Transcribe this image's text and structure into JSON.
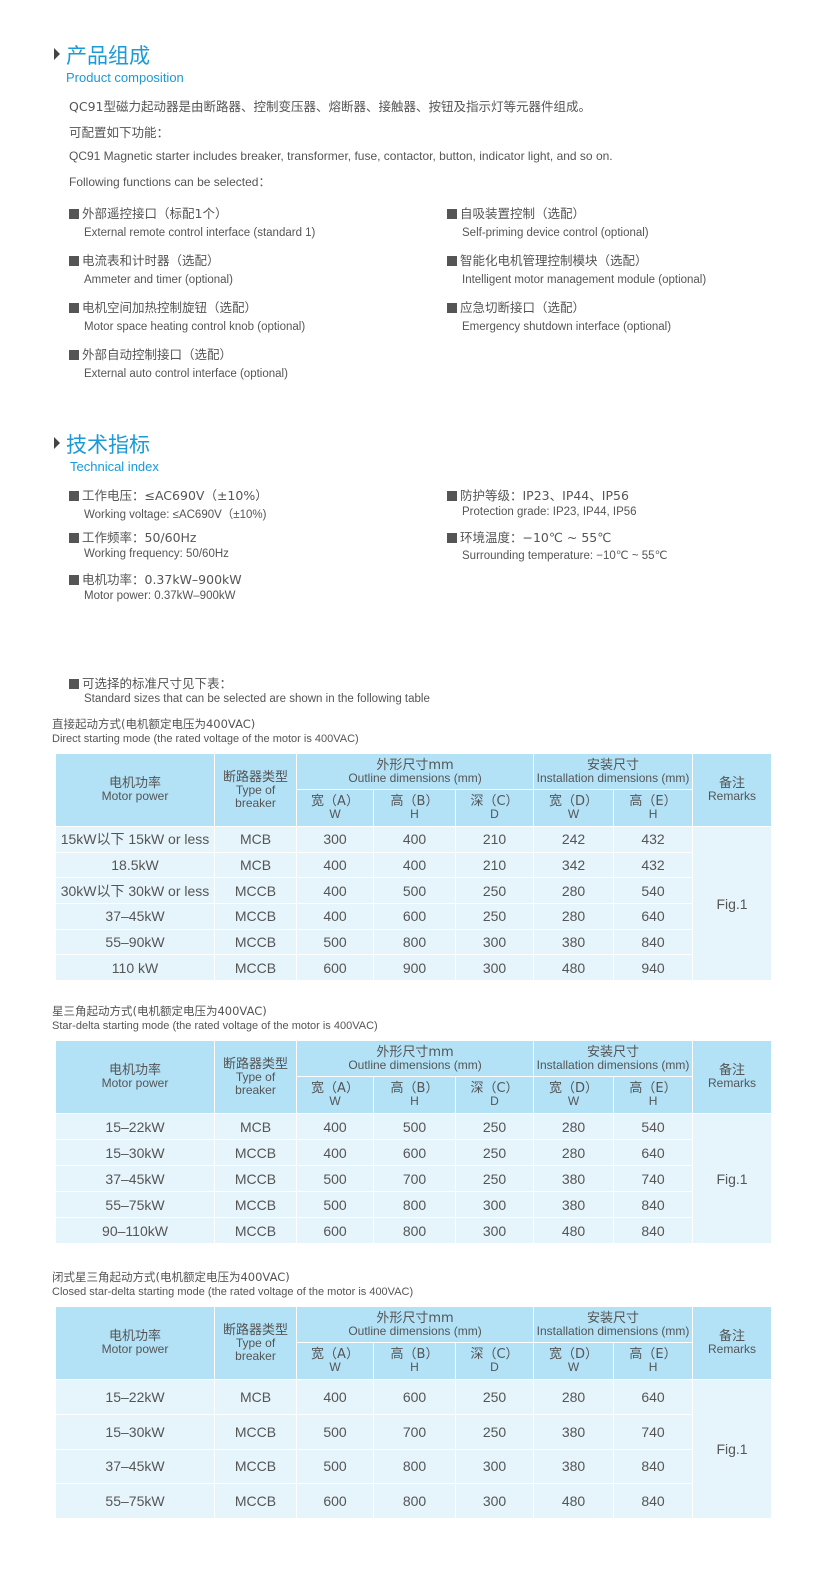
{
  "composition": {
    "title_zh": "产品组成",
    "title_en": "Product composition",
    "intro_zh": "QC91型磁力起动器是由断路器、控制变压器、熔断器、接触器、按钮及指示灯等元器件组成。",
    "configurable_zh": "可配置如下功能：",
    "intro_en": "QC91 Magnetic starter includes breaker, transformer, fuse, contactor, button, indicator light, and so on.",
    "configurable_en": "Following functions can be selected：",
    "features_left": [
      {
        "zh": "外部遥控接口（标配1个）",
        "en": "External remote control interface (standard 1)"
      },
      {
        "zh": "电流表和计时器（选配）",
        "en": "Ammeter and timer (optional)"
      },
      {
        "zh": "电机空间加热控制旋钮（选配）",
        "en": "Motor space heating control knob (optional)"
      },
      {
        "zh": "外部自动控制接口（选配）",
        "en": "External auto control interface (optional)"
      }
    ],
    "features_right": [
      {
        "zh": "自吸装置控制（选配）",
        "en": "Self-priming device control (optional)"
      },
      {
        "zh": "智能化电机管理控制模块（选配）",
        "en": "Intelligent motor management module (optional)"
      },
      {
        "zh": "应急切断接口（选配）",
        "en": "Emergency shutdown interface (optional)"
      }
    ]
  },
  "technical": {
    "title_zh": "技术指标",
    "title_en": "Technical index",
    "left": [
      {
        "zh": "工作电压：≤AC690V（±10%）",
        "en": "Working voltage: ≤AC690V（±10%)"
      },
      {
        "zh": "工作频率：50/60Hz",
        "en": "Working frequency: 50/60Hz"
      },
      {
        "zh": "电机功率：0.37kW–900kW",
        "en": "Motor power: 0.37kW–900kW"
      }
    ],
    "right": [
      {
        "zh": "防护等级：IP23、IP44、IP56",
        "en": "Protection grade: IP23, IP44, IP56"
      },
      {
        "zh": "环境温度：−10℃ ~ 55℃",
        "en": "Surrounding temperature: −10℃ ~ 55℃"
      }
    ],
    "sizes_zh": "可选择的标准尺寸见下表：",
    "sizes_en": "Standard sizes that can be selected are shown in the following table"
  },
  "table_header": {
    "motor_zh": "电机功率",
    "motor_en": "Motor power",
    "breaker_zh": "断路器类型",
    "breaker_en": "Type of breaker",
    "outline_zh": "外形尺寸mm",
    "outline_en": "Outline dimensions (mm)",
    "install_zh": "安装尺寸",
    "install_en": "Installation dimensions (mm)",
    "remarks_zh": "备注",
    "remarks_en": "Remarks",
    "w_zh": "宽（A）",
    "w_en": "W",
    "h_zh": "高（B）",
    "h_en": "H",
    "d_zh": "深（C）",
    "d_en": "D",
    "iw_zh": "宽（D）",
    "iw_en": "W",
    "ih_zh": "高（E）",
    "ih_en": "H"
  },
  "tables": [
    {
      "caption_zh": "直接起动方式(电机额定电压为400VAC)",
      "caption_en": "Direct starting mode (the rated voltage of the motor is 400VAC)",
      "remarks": "Fig.1",
      "rows": [
        [
          "15kW以下 15kW or less",
          "MCB",
          "300",
          "400",
          "210",
          "242",
          "432"
        ],
        [
          "18.5kW",
          "MCB",
          "400",
          "400",
          "210",
          "342",
          "432"
        ],
        [
          "30kW以下 30kW or less",
          "MCCB",
          "400",
          "500",
          "250",
          "280",
          "540"
        ],
        [
          "37–45kW",
          "MCCB",
          "400",
          "600",
          "250",
          "280",
          "640"
        ],
        [
          "55–90kW",
          "MCCB",
          "500",
          "800",
          "300",
          "380",
          "840"
        ],
        [
          "110 kW",
          "MCCB",
          "600",
          "900",
          "300",
          "480",
          "940"
        ]
      ]
    },
    {
      "caption_zh": "星三角起动方式(电机额定电压为400VAC)",
      "caption_en": "Star-delta starting mode (the rated voltage of the motor is 400VAC)",
      "remarks": "Fig.1",
      "rows": [
        [
          "15–22kW",
          "MCB",
          "400",
          "500",
          "250",
          "280",
          "540"
        ],
        [
          "15–30kW",
          "MCCB",
          "400",
          "600",
          "250",
          "280",
          "640"
        ],
        [
          "37–45kW",
          "MCCB",
          "500",
          "700",
          "250",
          "380",
          "740"
        ],
        [
          "55–75kW",
          "MCCB",
          "500",
          "800",
          "300",
          "380",
          "840"
        ],
        [
          "90–110kW",
          "MCCB",
          "600",
          "800",
          "300",
          "480",
          "840"
        ]
      ]
    },
    {
      "caption_zh": "闭式星三角起动方式(电机额定电压为400VAC)",
      "caption_en": "Closed star-delta starting mode (the rated voltage of the motor is 400VAC)",
      "remarks": "Fig.1",
      "rows": [
        [
          "15–22kW",
          "MCB",
          "400",
          "600",
          "250",
          "280",
          "640"
        ],
        [
          "15–30kW",
          "MCCB",
          "500",
          "700",
          "250",
          "380",
          "740"
        ],
        [
          "37–45kW",
          "MCCB",
          "500",
          "800",
          "300",
          "380",
          "840"
        ],
        [
          "55–75kW",
          "MCCB",
          "600",
          "800",
          "300",
          "480",
          "840"
        ]
      ]
    }
  ],
  "colors": {
    "accent": "#1a9ad6",
    "header_bg": "#b3e2f7",
    "row_bg": "#e6f5fc",
    "text": "#555555"
  }
}
